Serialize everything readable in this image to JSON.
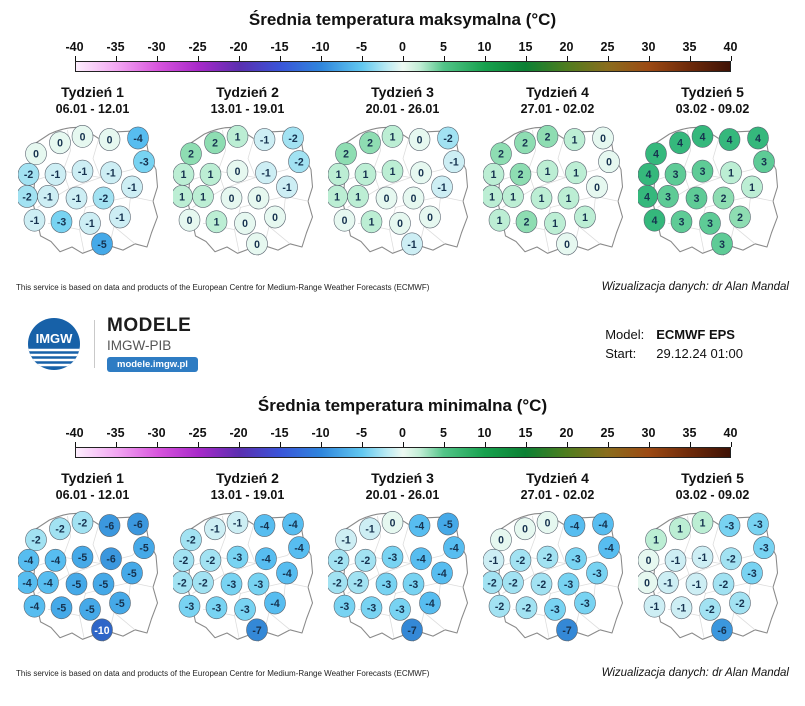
{
  "branding": {
    "logo_text": "IMGW",
    "product_name": "MODELE",
    "institute": "IMGW-PIB",
    "website": "modele.imgw.pl"
  },
  "model_info": {
    "model_label": "Model:",
    "model_value": "ECMWF EPS",
    "start_label": "Start:",
    "start_value": "29.12.24 01:00"
  },
  "footer": {
    "attribution": "This service is based on data and products of the European Centre for Medium-Range Weather Forecasts (ECMWF)",
    "credit": "Wizualizacja danych: dr Alan Mandal"
  },
  "colorbar": {
    "ticks": [
      -40,
      -35,
      -30,
      -25,
      -20,
      -15,
      -10,
      -5,
      0,
      5,
      10,
      15,
      20,
      25,
      30,
      35,
      40
    ],
    "gradient": [
      {
        "v": -40,
        "color": "#fdeefd"
      },
      {
        "v": -35,
        "color": "#f2a6f2"
      },
      {
        "v": -30,
        "color": "#d855dd"
      },
      {
        "v": -25,
        "color": "#a829c9"
      },
      {
        "v": -20,
        "color": "#5b2fb0"
      },
      {
        "v": -15,
        "color": "#3a55d9"
      },
      {
        "v": -10,
        "color": "#2f86dd"
      },
      {
        "v": -5,
        "color": "#62c8f0"
      },
      {
        "v": -2,
        "color": "#b9eaf3"
      },
      {
        "v": 0,
        "color": "#eef9f2"
      },
      {
        "v": 2,
        "color": "#c3eed7"
      },
      {
        "v": 5,
        "color": "#52c488"
      },
      {
        "v": 10,
        "color": "#17a14e"
      },
      {
        "v": 15,
        "color": "#0c8034"
      },
      {
        "v": 20,
        "color": "#4f7d1f"
      },
      {
        "v": 25,
        "color": "#8a6d1d"
      },
      {
        "v": 30,
        "color": "#9c4a14"
      },
      {
        "v": 35,
        "color": "#6e2a0a"
      },
      {
        "v": 40,
        "color": "#3f1205"
      }
    ]
  },
  "marker_colors": {
    "4": "#35b87c",
    "3": "#5ecb96",
    "2": "#8eddb2",
    "1": "#bceed4",
    "0": "#e6f8f0",
    "-1": "#cdeef4",
    "-2": "#a2e2f2",
    "-3": "#78d3f2",
    "-4": "#57bdf0",
    "-5": "#45a9e8",
    "-6": "#3b97de",
    "-7": "#3488d6",
    "-10": "#2e66c8"
  },
  "marker_text_color": "#16324f",
  "white_text_at_or_below": -8,
  "stations": [
    [
      28,
      15
    ],
    [
      43,
      11
    ],
    [
      61,
      13
    ],
    [
      80,
      12
    ],
    [
      12,
      22
    ],
    [
      84,
      27
    ],
    [
      7,
      35
    ],
    [
      25,
      35
    ],
    [
      43,
      33
    ],
    [
      62,
      34
    ],
    [
      6,
      49
    ],
    [
      20,
      49
    ],
    [
      39,
      50
    ],
    [
      57,
      50
    ],
    [
      76,
      43
    ],
    [
      11,
      64
    ],
    [
      29,
      65
    ],
    [
      48,
      66
    ],
    [
      68,
      62
    ],
    [
      56,
      79
    ]
  ],
  "chart_data": [
    {
      "type": "scatter",
      "title": "Średnia temperatura maksymalna (°C)",
      "units": "°C",
      "colorbar_range": [
        -40,
        40
      ],
      "legend_position": "top",
      "weeks": [
        {
          "label": "Tydzień 1",
          "dates": "06.01 - 12.01",
          "values": [
            0,
            0,
            0,
            -4,
            0,
            -3,
            -2,
            -1,
            -1,
            -1,
            -2,
            -1,
            -1,
            -2,
            -1,
            -1,
            -3,
            -1,
            -1,
            -5
          ]
        },
        {
          "label": "Tydzień 2",
          "dates": "13.01 - 19.01",
          "values": [
            2,
            1,
            -1,
            -2,
            2,
            -2,
            1,
            1,
            0,
            -1,
            1,
            1,
            0,
            0,
            -1,
            0,
            1,
            0,
            0,
            0
          ]
        },
        {
          "label": "Tydzień 3",
          "dates": "20.01 - 26.01",
          "values": [
            2,
            1,
            0,
            -2,
            2,
            -1,
            1,
            1,
            1,
            0,
            1,
            1,
            0,
            0,
            -1,
            0,
            1,
            0,
            0,
            -1
          ]
        },
        {
          "label": "Tydzień 4",
          "dates": "27.01 - 02.02",
          "values": [
            2,
            2,
            1,
            0,
            2,
            0,
            1,
            2,
            1,
            1,
            1,
            1,
            1,
            1,
            0,
            1,
            2,
            1,
            1,
            0
          ]
        },
        {
          "label": "Tydzień 5",
          "dates": "03.02 - 09.02",
          "values": [
            4,
            4,
            4,
            4,
            4,
            3,
            4,
            3,
            3,
            1,
            4,
            3,
            3,
            2,
            1,
            4,
            3,
            3,
            2,
            3
          ]
        }
      ]
    },
    {
      "type": "scatter",
      "title": "Średnia temperatura minimalna (°C)",
      "units": "°C",
      "colorbar_range": [
        -40,
        40
      ],
      "legend_position": "top",
      "weeks": [
        {
          "label": "Tydzień 1",
          "dates": "06.01 - 12.01",
          "values": [
            -2,
            -2,
            -6,
            -6,
            -2,
            -5,
            -4,
            -4,
            -5,
            -6,
            -4,
            -4,
            -5,
            -5,
            -5,
            -4,
            -5,
            -5,
            -5,
            -10
          ]
        },
        {
          "label": "Tydzień 2",
          "dates": "13.01 - 19.01",
          "values": [
            -1,
            -1,
            -4,
            -4,
            -2,
            -4,
            -2,
            -2,
            -3,
            -4,
            -2,
            -2,
            -3,
            -3,
            -4,
            -3,
            -3,
            -3,
            -4,
            -7
          ]
        },
        {
          "label": "Tydzień 3",
          "dates": "20.01 - 26.01",
          "values": [
            -1,
            0,
            -4,
            -5,
            -1,
            -4,
            -2,
            -2,
            -3,
            -4,
            -2,
            -2,
            -3,
            -3,
            -4,
            -3,
            -3,
            -3,
            -4,
            -7
          ]
        },
        {
          "label": "Tydzień 4",
          "dates": "27.01 - 02.02",
          "values": [
            0,
            0,
            -4,
            -4,
            0,
            -4,
            -1,
            -2,
            -2,
            -3,
            -2,
            -2,
            -2,
            -3,
            -3,
            -2,
            -2,
            -3,
            -3,
            -7
          ]
        },
        {
          "label": "Tydzień 5",
          "dates": "03.02 - 09.02",
          "values": [
            1,
            1,
            -3,
            -3,
            1,
            -3,
            0,
            -1,
            -1,
            -2,
            0,
            -1,
            -1,
            -2,
            -3,
            -1,
            -1,
            -2,
            -2,
            -6
          ]
        }
      ]
    }
  ]
}
